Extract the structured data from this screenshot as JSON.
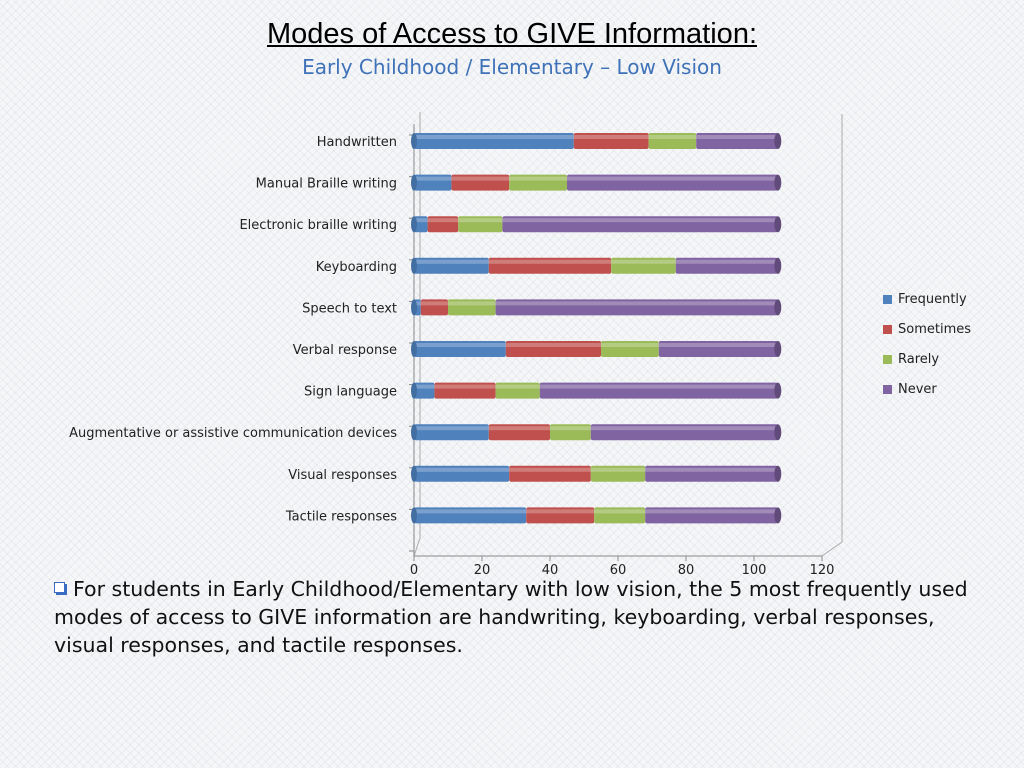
{
  "slide": {
    "title": "Modes of Access to GIVE Information:",
    "subtitle": "Early Childhood / Elementary – Low Vision",
    "note": "For students in Early Childhood/Elementary with low vision, the 5 most frequently used modes of access to GIVE information are handwriting, keyboarding, verbal responses, visual responses, and tactile responses."
  },
  "chart_data": {
    "type": "bar",
    "orientation": "horizontal",
    "stacked": true,
    "categories": [
      "Handwritten",
      "Manual Braille writing",
      "Electronic braille writing",
      "Keyboarding",
      "Speech to text",
      "Verbal response",
      "Sign language",
      "Augmentative or assistive communication devices",
      "Visual responses",
      "Tactile responses"
    ],
    "series": [
      {
        "name": "Frequently",
        "color": "#4f81bd",
        "values": [
          47,
          11,
          4,
          22,
          2,
          27,
          6,
          22,
          28,
          33
        ]
      },
      {
        "name": "Sometimes",
        "color": "#c0504d",
        "values": [
          22,
          17,
          9,
          36,
          8,
          28,
          18,
          18,
          24,
          20
        ]
      },
      {
        "name": "Rarely",
        "color": "#9bbb59",
        "values": [
          14,
          17,
          13,
          19,
          14,
          17,
          13,
          12,
          16,
          15
        ]
      },
      {
        "name": "Never",
        "color": "#8064a2",
        "values": [
          24,
          62,
          81,
          30,
          83,
          35,
          70,
          55,
          39,
          39
        ]
      }
    ],
    "xlim": [
      0,
      120
    ],
    "xticks": [
      0,
      20,
      40,
      60,
      80,
      100,
      120
    ],
    "legend": "right",
    "grid": false
  }
}
